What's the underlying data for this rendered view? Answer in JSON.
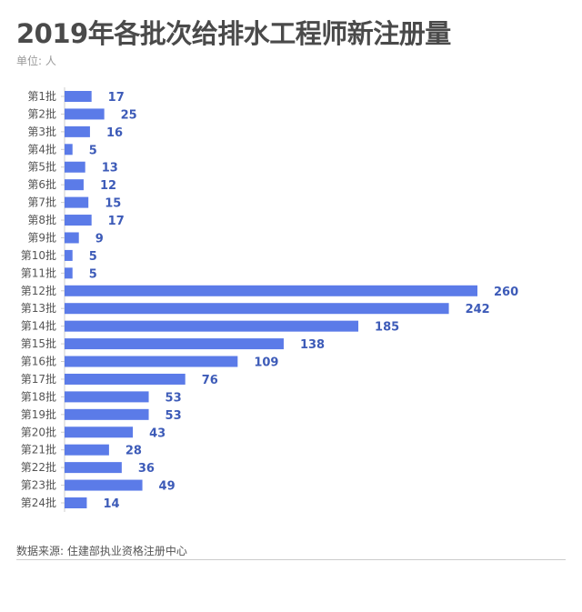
{
  "chart_data": {
    "type": "bar",
    "orientation": "horizontal",
    "title": "2019年各批次给排水工程师新注册量",
    "unit_label": "单位: 人",
    "categories": [
      "第1批",
      "第2批",
      "第3批",
      "第4批",
      "第5批",
      "第6批",
      "第7批",
      "第8批",
      "第9批",
      "第10批",
      "第11批",
      "第12批",
      "第13批",
      "第14批",
      "第15批",
      "第16批",
      "第17批",
      "第18批",
      "第19批",
      "第20批",
      "第21批",
      "第22批",
      "第23批",
      "第24批"
    ],
    "values": [
      17,
      25,
      16,
      5,
      13,
      12,
      15,
      17,
      9,
      5,
      5,
      260,
      242,
      185,
      138,
      109,
      76,
      53,
      53,
      43,
      28,
      36,
      49,
      14
    ],
    "xlim": [
      0,
      260
    ],
    "grid": false,
    "data_labels": true,
    "colors": {
      "bar": "#5b7be8",
      "label": "#3d5bb8"
    },
    "source": "数据来源: 住建部执业资格注册中心"
  }
}
